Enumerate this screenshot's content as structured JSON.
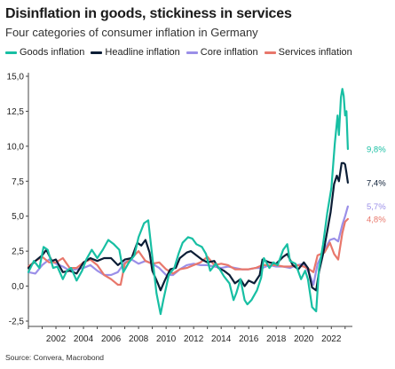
{
  "title": "Disinflation in goods, stickiness in services",
  "subtitle": "Four categories of consumer inflation in Germany",
  "source": "Source: Convera, Macrobond",
  "chart_data": {
    "type": "line",
    "xlim": [
      2000.0,
      2023.4
    ],
    "ylim": [
      -2.5,
      15.0
    ],
    "y_ticks": [
      -2.5,
      0.0,
      2.5,
      5.0,
      7.5,
      10.0,
      12.5,
      15.0
    ],
    "y_tick_labels": [
      "-2,5",
      "0,0",
      "2,5",
      "5,0",
      "7,5",
      "10,0",
      "12,5",
      "15,0"
    ],
    "x_ticks": [
      2002,
      2004,
      2006,
      2008,
      2010,
      2012,
      2014,
      2016,
      2018,
      2020,
      2022
    ],
    "x_tick_labels": [
      "2002",
      "2004",
      "2006",
      "2008",
      "2010",
      "2012",
      "2014",
      "2016",
      "2018",
      "2020",
      "2022"
    ],
    "grid": false,
    "legend_position": "top",
    "series": [
      {
        "name": "Core inflation",
        "color": "#9b8fe8",
        "end_label": "5,7%",
        "points": [
          [
            2000.0,
            1.0
          ],
          [
            2000.5,
            0.9
          ],
          [
            2001.0,
            1.5
          ],
          [
            2001.5,
            1.9
          ],
          [
            2002.0,
            1.6
          ],
          [
            2002.5,
            1.4
          ],
          [
            2003.0,
            1.1
          ],
          [
            2003.5,
            1.2
          ],
          [
            2004.0,
            1.3
          ],
          [
            2004.5,
            1.5
          ],
          [
            2005.0,
            1.1
          ],
          [
            2005.5,
            0.8
          ],
          [
            2006.0,
            0.8
          ],
          [
            2006.5,
            1.0
          ],
          [
            2007.0,
            1.7
          ],
          [
            2007.5,
            1.9
          ],
          [
            2008.0,
            1.6
          ],
          [
            2008.5,
            1.8
          ],
          [
            2009.0,
            1.6
          ],
          [
            2009.5,
            1.3
          ],
          [
            2010.0,
            0.8
          ],
          [
            2010.5,
            0.8
          ],
          [
            2011.0,
            1.2
          ],
          [
            2011.5,
            1.5
          ],
          [
            2012.0,
            1.6
          ],
          [
            2012.5,
            1.5
          ],
          [
            2013.0,
            1.5
          ],
          [
            2013.5,
            1.4
          ],
          [
            2014.0,
            1.3
          ],
          [
            2014.5,
            1.4
          ],
          [
            2015.0,
            1.3
          ],
          [
            2015.5,
            1.2
          ],
          [
            2016.0,
            1.2
          ],
          [
            2016.5,
            1.3
          ],
          [
            2017.0,
            1.3
          ],
          [
            2017.5,
            1.5
          ],
          [
            2018.0,
            1.4
          ],
          [
            2018.5,
            1.4
          ],
          [
            2019.0,
            1.3
          ],
          [
            2019.5,
            1.5
          ],
          [
            2020.0,
            1.6
          ],
          [
            2020.4,
            0.9
          ],
          [
            2020.7,
            0.1
          ],
          [
            2021.0,
            1.6
          ],
          [
            2021.5,
            2.6
          ],
          [
            2021.9,
            3.3
          ],
          [
            2022.2,
            3.4
          ],
          [
            2022.5,
            3.2
          ],
          [
            2022.8,
            4.4
          ],
          [
            2023.0,
            5.0
          ],
          [
            2023.2,
            5.7
          ]
        ]
      },
      {
        "name": "Services inflation",
        "color": "#e8776b",
        "end_label": "4,8%",
        "points": [
          [
            2000.0,
            1.4
          ],
          [
            2000.5,
            1.8
          ],
          [
            2001.0,
            2.1
          ],
          [
            2001.5,
            1.7
          ],
          [
            2002.0,
            1.7
          ],
          [
            2002.5,
            2.0
          ],
          [
            2003.0,
            1.3
          ],
          [
            2003.5,
            1.3
          ],
          [
            2004.0,
            1.7
          ],
          [
            2004.5,
            1.9
          ],
          [
            2005.0,
            1.5
          ],
          [
            2005.5,
            0.8
          ],
          [
            2006.0,
            0.5
          ],
          [
            2006.5,
            0.1
          ],
          [
            2006.7,
            0.1
          ],
          [
            2007.0,
            1.6
          ],
          [
            2007.5,
            2.0
          ],
          [
            2008.0,
            2.5
          ],
          [
            2008.5,
            1.8
          ],
          [
            2009.0,
            1.6
          ],
          [
            2009.5,
            1.7
          ],
          [
            2010.0,
            1.2
          ],
          [
            2010.5,
            0.9
          ],
          [
            2011.0,
            1.2
          ],
          [
            2011.5,
            1.3
          ],
          [
            2012.0,
            1.5
          ],
          [
            2012.5,
            1.7
          ],
          [
            2013.0,
            2.1
          ],
          [
            2013.5,
            1.5
          ],
          [
            2014.0,
            1.6
          ],
          [
            2014.5,
            1.5
          ],
          [
            2015.0,
            1.2
          ],
          [
            2015.5,
            1.2
          ],
          [
            2016.0,
            1.2
          ],
          [
            2016.5,
            1.3
          ],
          [
            2017.0,
            1.5
          ],
          [
            2017.5,
            1.5
          ],
          [
            2018.0,
            1.5
          ],
          [
            2018.5,
            1.4
          ],
          [
            2019.0,
            1.4
          ],
          [
            2019.5,
            1.5
          ],
          [
            2020.0,
            1.4
          ],
          [
            2020.4,
            1.2
          ],
          [
            2020.7,
            1.0
          ],
          [
            2021.0,
            2.2
          ],
          [
            2021.5,
            2.4
          ],
          [
            2021.9,
            3.1
          ],
          [
            2022.2,
            2.3
          ],
          [
            2022.5,
            1.9
          ],
          [
            2022.8,
            3.8
          ],
          [
            2023.0,
            4.6
          ],
          [
            2023.2,
            4.8
          ]
        ]
      },
      {
        "name": "Headline inflation",
        "color": "#0c1e36",
        "end_label": "7,4%",
        "points": [
          [
            2000.0,
            1.3
          ],
          [
            2000.5,
            1.8
          ],
          [
            2001.0,
            2.2
          ],
          [
            2001.3,
            2.6
          ],
          [
            2001.7,
            1.8
          ],
          [
            2002.0,
            1.9
          ],
          [
            2002.5,
            1.0
          ],
          [
            2003.0,
            1.1
          ],
          [
            2003.5,
            0.9
          ],
          [
            2004.0,
            1.7
          ],
          [
            2004.5,
            2.0
          ],
          [
            2005.0,
            1.8
          ],
          [
            2005.5,
            2.0
          ],
          [
            2006.0,
            2.0
          ],
          [
            2006.5,
            1.5
          ],
          [
            2007.0,
            1.9
          ],
          [
            2007.5,
            2.0
          ],
          [
            2007.9,
            3.1
          ],
          [
            2008.2,
            2.9
          ],
          [
            2008.5,
            3.3
          ],
          [
            2008.8,
            2.4
          ],
          [
            2009.0,
            1.1
          ],
          [
            2009.4,
            0.2
          ],
          [
            2009.6,
            -0.3
          ],
          [
            2009.9,
            0.4
          ],
          [
            2010.3,
            1.2
          ],
          [
            2010.7,
            1.3
          ],
          [
            2011.0,
            2.0
          ],
          [
            2011.5,
            2.4
          ],
          [
            2011.8,
            2.5
          ],
          [
            2012.2,
            2.2
          ],
          [
            2012.6,
            1.9
          ],
          [
            2013.0,
            1.7
          ],
          [
            2013.5,
            1.8
          ],
          [
            2013.8,
            1.3
          ],
          [
            2014.2,
            1.1
          ],
          [
            2014.6,
            0.8
          ],
          [
            2015.0,
            0.2
          ],
          [
            2015.4,
            0.5
          ],
          [
            2015.7,
            0.0
          ],
          [
            2016.0,
            0.4
          ],
          [
            2016.4,
            0.2
          ],
          [
            2016.8,
            0.8
          ],
          [
            2017.0,
            1.9
          ],
          [
            2017.5,
            1.7
          ],
          [
            2018.0,
            1.6
          ],
          [
            2018.5,
            2.1
          ],
          [
            2018.8,
            2.3
          ],
          [
            2019.2,
            1.5
          ],
          [
            2019.6,
            1.2
          ],
          [
            2020.0,
            1.7
          ],
          [
            2020.3,
            1.3
          ],
          [
            2020.6,
            -0.1
          ],
          [
            2020.9,
            -0.3
          ],
          [
            2021.1,
            1.0
          ],
          [
            2021.4,
            2.3
          ],
          [
            2021.7,
            3.9
          ],
          [
            2021.95,
            5.3
          ],
          [
            2022.2,
            7.3
          ],
          [
            2022.4,
            7.9
          ],
          [
            2022.55,
            7.5
          ],
          [
            2022.75,
            8.8
          ],
          [
            2022.9,
            8.8
          ],
          [
            2023.0,
            8.7
          ],
          [
            2023.1,
            8.1
          ],
          [
            2023.2,
            7.4
          ]
        ]
      },
      {
        "name": "Goods inflation",
        "color": "#17bfa3",
        "end_label": "9,8%",
        "points": [
          [
            2000.0,
            1.0
          ],
          [
            2000.4,
            1.8
          ],
          [
            2000.8,
            1.3
          ],
          [
            2001.1,
            2.8
          ],
          [
            2001.4,
            2.6
          ],
          [
            2001.8,
            1.3
          ],
          [
            2002.1,
            1.4
          ],
          [
            2002.5,
            0.5
          ],
          [
            2002.8,
            1.1
          ],
          [
            2003.1,
            1.3
          ],
          [
            2003.5,
            0.4
          ],
          [
            2003.9,
            1.1
          ],
          [
            2004.2,
            1.9
          ],
          [
            2004.6,
            2.6
          ],
          [
            2005.0,
            2.0
          ],
          [
            2005.4,
            2.6
          ],
          [
            2005.8,
            3.3
          ],
          [
            2006.2,
            3.0
          ],
          [
            2006.6,
            2.6
          ],
          [
            2006.9,
            1.0
          ],
          [
            2007.3,
            1.7
          ],
          [
            2007.7,
            2.2
          ],
          [
            2008.0,
            3.5
          ],
          [
            2008.4,
            4.5
          ],
          [
            2008.7,
            4.7
          ],
          [
            2009.0,
            2.1
          ],
          [
            2009.3,
            -0.5
          ],
          [
            2009.6,
            -2.0
          ],
          [
            2009.8,
            -1.0
          ],
          [
            2010.2,
            0.8
          ],
          [
            2010.6,
            1.3
          ],
          [
            2010.9,
            2.3
          ],
          [
            2011.2,
            3.1
          ],
          [
            2011.6,
            3.5
          ],
          [
            2011.9,
            3.4
          ],
          [
            2012.2,
            3.0
          ],
          [
            2012.6,
            2.8
          ],
          [
            2012.9,
            2.3
          ],
          [
            2013.2,
            1.1
          ],
          [
            2013.6,
            1.6
          ],
          [
            2013.9,
            1.2
          ],
          [
            2014.2,
            0.7
          ],
          [
            2014.6,
            0.2
          ],
          [
            2014.9,
            -1.0
          ],
          [
            2015.1,
            -0.5
          ],
          [
            2015.4,
            0.5
          ],
          [
            2015.7,
            -1.0
          ],
          [
            2015.9,
            -1.3
          ],
          [
            2016.2,
            -1.0
          ],
          [
            2016.6,
            -0.3
          ],
          [
            2016.9,
            0.6
          ],
          [
            2017.1,
            2.0
          ],
          [
            2017.5,
            1.3
          ],
          [
            2017.8,
            1.7
          ],
          [
            2018.1,
            1.5
          ],
          [
            2018.5,
            2.6
          ],
          [
            2018.8,
            3.0
          ],
          [
            2019.0,
            1.8
          ],
          [
            2019.4,
            1.6
          ],
          [
            2019.8,
            0.5
          ],
          [
            2020.1,
            1.1
          ],
          [
            2020.3,
            0.5
          ],
          [
            2020.6,
            -1.5
          ],
          [
            2020.9,
            -1.8
          ],
          [
            2021.1,
            1.2
          ],
          [
            2021.4,
            3.0
          ],
          [
            2021.7,
            5.2
          ],
          [
            2022.0,
            7.0
          ],
          [
            2022.25,
            10.2
          ],
          [
            2022.45,
            12.2
          ],
          [
            2022.55,
            10.8
          ],
          [
            2022.7,
            13.5
          ],
          [
            2022.8,
            14.1
          ],
          [
            2022.9,
            13.6
          ],
          [
            2023.0,
            12.2
          ],
          [
            2023.1,
            12.5
          ],
          [
            2023.2,
            9.8
          ]
        ]
      }
    ]
  }
}
